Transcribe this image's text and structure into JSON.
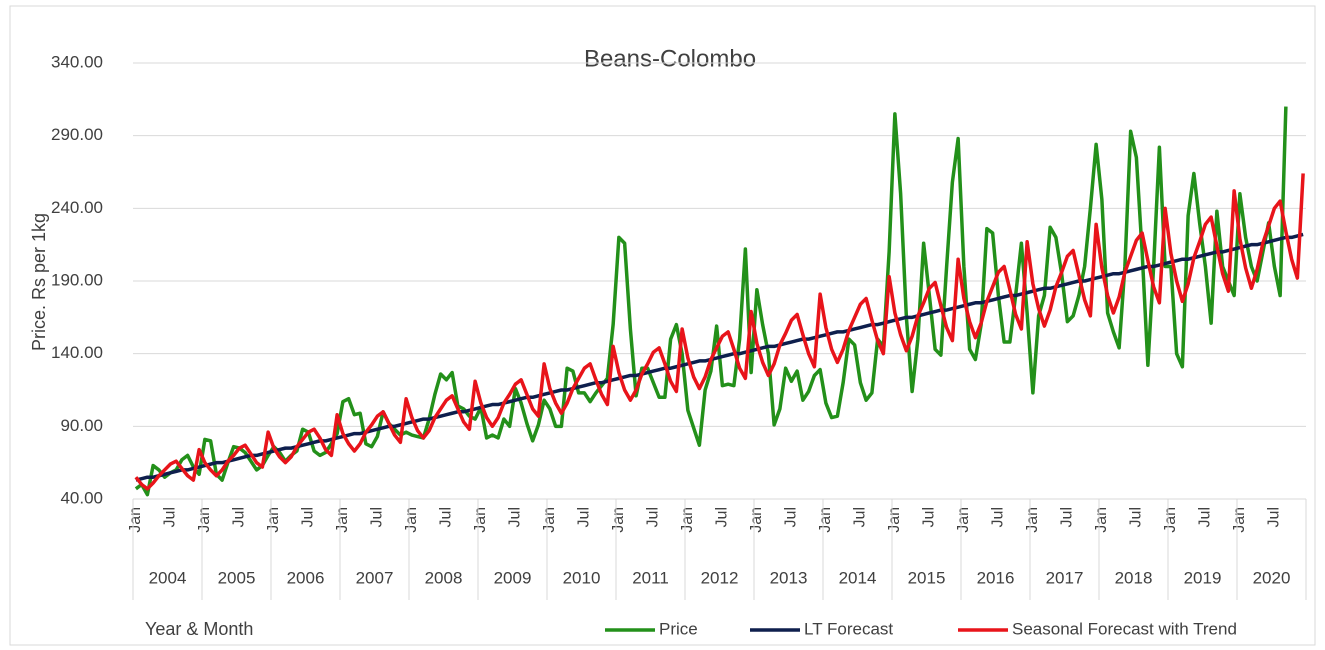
{
  "chart_data": {
    "type": "line",
    "title": "Beans-Colombo",
    "y_label": "Price. Rs per 1kg",
    "x_label": "Year & Month",
    "years": [
      "2004",
      "2005",
      "2006",
      "2007",
      "2008",
      "2009",
      "2010",
      "2011",
      "2012",
      "2013",
      "2014",
      "2015",
      "2016",
      "2017",
      "2018",
      "2019",
      "2020"
    ],
    "categories": [
      "Jan",
      null,
      null,
      null,
      null,
      null,
      "Jul",
      null,
      null,
      null,
      null,
      null,
      "Jan",
      null,
      null,
      null,
      null,
      null,
      "Jul",
      null,
      null,
      null,
      null,
      null,
      "Jan",
      null,
      null,
      null,
      null,
      null,
      "Jul",
      null,
      null,
      null,
      null,
      null,
      "Jan",
      null,
      null,
      null,
      null,
      null,
      "Jul",
      null,
      null,
      null,
      null,
      null,
      "Jan",
      null,
      null,
      null,
      null,
      null,
      "Jul",
      null,
      null,
      null,
      null,
      null,
      "Jan",
      null,
      null,
      null,
      null,
      null,
      "Jul",
      null,
      null,
      null,
      null,
      null,
      "Jan",
      null,
      null,
      null,
      null,
      null,
      "Jul",
      null,
      null,
      null,
      null,
      null,
      "Jan",
      null,
      null,
      null,
      null,
      null,
      "Jul",
      null,
      null,
      null,
      null,
      null,
      "Jan",
      null,
      null,
      null,
      null,
      null,
      "Jul",
      null,
      null,
      null,
      null,
      null,
      "Jan",
      null,
      null,
      null,
      null,
      null,
      "Jul",
      null,
      null,
      null,
      null,
      null,
      "Jan",
      null,
      null,
      null,
      null,
      null,
      "Jul",
      null,
      null,
      null,
      null,
      null,
      "Jan",
      null,
      null,
      null,
      null,
      null,
      "Jul",
      null,
      null,
      null,
      null,
      null,
      "Jan",
      null,
      null,
      null,
      null,
      null,
      "Jul",
      null,
      null,
      null,
      null,
      null,
      "Jan",
      null,
      null,
      null,
      null,
      null,
      "Jul",
      null,
      null,
      null,
      null,
      null,
      "Jan",
      null,
      null,
      null,
      null,
      null,
      "Jul",
      null,
      null,
      null,
      null,
      null,
      "Jan",
      null,
      null,
      null,
      null,
      null,
      "Jul",
      null,
      null,
      null,
      null,
      null,
      "Jan",
      null,
      null,
      null,
      null,
      null,
      "Jul",
      null,
      null,
      null,
      null,
      null
    ],
    "series": [
      {
        "name": "Price",
        "color": "#23901a",
        "values": [
          47,
          50,
          43,
          63,
          60,
          55,
          58,
          60,
          67,
          70,
          62,
          57,
          81,
          80,
          57,
          53,
          65,
          76,
          75,
          72,
          66,
          60,
          63,
          70,
          76,
          72,
          66,
          70,
          73,
          88,
          86,
          73,
          70,
          72,
          78,
          85,
          107,
          109,
          98,
          99,
          78,
          76,
          83,
          100,
          92,
          88,
          84,
          86,
          84,
          83,
          82,
          95,
          112,
          126,
          122,
          127,
          104,
          102,
          97,
          95,
          103,
          82,
          84,
          82,
          95,
          90,
          116,
          106,
          92,
          80,
          91,
          108,
          102,
          90,
          90,
          130,
          128,
          113,
          113,
          107,
          113,
          118,
          123,
          160,
          220,
          216,
          157,
          111,
          130,
          130,
          120,
          110,
          110,
          150,
          160,
          140,
          101,
          89,
          77,
          115,
          128,
          159,
          118,
          119,
          118,
          150,
          212,
          127,
          184,
          160,
          140,
          91,
          102,
          130,
          121,
          128,
          108,
          114,
          125,
          129,
          106,
          96,
          97,
          120,
          150,
          146,
          120,
          108,
          113,
          150,
          145,
          210,
          305,
          250,
          165,
          114,
          150,
          216,
          180,
          143,
          139,
          200,
          258,
          288,
          200,
          143,
          136,
          160,
          226,
          223,
          180,
          148,
          148,
          180,
          216,
          168,
          113,
          166,
          180,
          227,
          220,
          195,
          162,
          166,
          180,
          200,
          240,
          284,
          246,
          168,
          155,
          144,
          200,
          293,
          275,
          210,
          132,
          200,
          282,
          200,
          200,
          140,
          131,
          235,
          264,
          230,
          200,
          161,
          238,
          200,
          190,
          180,
          250,
          220,
          200,
          190,
          210,
          230,
          200,
          180,
          310,
          null,
          null,
          null
        ]
      },
      {
        "name": "LT Forecast",
        "color": "#0e1f4d",
        "values": [
          53,
          54,
          55,
          55,
          56,
          57,
          58,
          59,
          60,
          60,
          61,
          62,
          63,
          64,
          65,
          65,
          66,
          67,
          68,
          69,
          70,
          70,
          71,
          72,
          73,
          74,
          75,
          75,
          76,
          77,
          78,
          79,
          80,
          80,
          81,
          82,
          83,
          84,
          85,
          85,
          86,
          87,
          88,
          89,
          90,
          90,
          91,
          92,
          93,
          94,
          95,
          95,
          96,
          97,
          98,
          99,
          100,
          100,
          101,
          102,
          103,
          104,
          105,
          105,
          106,
          107,
          108,
          109,
          110,
          110,
          111,
          112,
          113,
          114,
          115,
          115,
          116,
          117,
          118,
          119,
          120,
          120,
          121,
          122,
          123,
          124,
          125,
          125,
          126,
          127,
          128,
          129,
          130,
          130,
          131,
          132,
          133,
          134,
          135,
          135,
          136,
          137,
          138,
          139,
          140,
          140,
          141,
          142,
          143,
          144,
          145,
          145,
          146,
          147,
          148,
          149,
          150,
          150,
          151,
          152,
          153,
          154,
          155,
          155,
          156,
          157,
          158,
          159,
          160,
          160,
          161,
          162,
          163,
          164,
          165,
          165,
          166,
          167,
          168,
          169,
          170,
          170,
          171,
          172,
          173,
          174,
          175,
          175,
          176,
          177,
          178,
          179,
          180,
          180,
          181,
          182,
          183,
          184,
          185,
          185,
          186,
          187,
          188,
          189,
          190,
          190,
          191,
          192,
          193,
          194,
          195,
          195,
          196,
          197,
          198,
          199,
          200,
          200,
          201,
          202,
          203,
          204,
          205,
          205,
          206,
          207,
          208,
          209,
          210,
          210,
          211,
          212,
          213,
          214,
          215,
          215,
          216,
          217,
          218,
          219,
          220,
          220,
          221,
          222
        ]
      },
      {
        "name": "Seasonal Forecast with Trend",
        "color": "#e8141a",
        "values": [
          55,
          50,
          47,
          51,
          56,
          60,
          64,
          66,
          61,
          56,
          53,
          74,
          65,
          60,
          56,
          60,
          66,
          70,
          75,
          77,
          71,
          65,
          62,
          86,
          75,
          69,
          65,
          69,
          76,
          81,
          86,
          88,
          82,
          74,
          70,
          98,
          85,
          78,
          73,
          78,
          86,
          91,
          97,
          100,
          92,
          84,
          79,
          109,
          96,
          87,
          82,
          87,
          96,
          102,
          108,
          111,
          102,
          93,
          88,
          121,
          106,
          96,
          90,
          96,
          106,
          112,
          119,
          122,
          112,
          102,
          97,
          133,
          116,
          106,
          99,
          106,
          116,
          123,
          130,
          133,
          122,
          112,
          105,
          145,
          127,
          115,
          108,
          115,
          126,
          133,
          141,
          144,
          133,
          121,
          114,
          157,
          137,
          124,
          116,
          124,
          136,
          144,
          152,
          155,
          143,
          130,
          123,
          169,
          147,
          134,
          125,
          133,
          146,
          154,
          163,
          167,
          153,
          140,
          131,
          181,
          158,
          143,
          134,
          143,
          156,
          165,
          174,
          178,
          163,
          149,
          140,
          193,
          168,
          153,
          142,
          152,
          166,
          175,
          185,
          189,
          173,
          158,
          149,
          205,
          178,
          162,
          151,
          161,
          176,
          186,
          196,
          200,
          184,
          167,
          157,
          217,
          188,
          171,
          159,
          170,
          186,
          196,
          207,
          211,
          194,
          177,
          166,
          229,
          199,
          180,
          168,
          179,
          196,
          207,
          218,
          223,
          204,
          186,
          175,
          240,
          209,
          190,
          176,
          188,
          206,
          217,
          229,
          234,
          214,
          195,
          183,
          252,
          219,
          199,
          185,
          198,
          216,
          228,
          240,
          245,
          224,
          205,
          192,
          264
        ]
      }
    ],
    "ylim": [
      40,
      340
    ],
    "yticks": [
      {
        "value": 40,
        "label": "40.00"
      },
      {
        "value": 90,
        "label": "90.00"
      },
      {
        "value": 140,
        "label": "140.00"
      },
      {
        "value": 190,
        "label": "190.00"
      },
      {
        "value": 240,
        "label": "240.00"
      },
      {
        "value": 290,
        "label": "290.00"
      },
      {
        "value": 340,
        "label": "340.00"
      }
    ],
    "grid": true,
    "legend": "bottom-right"
  }
}
